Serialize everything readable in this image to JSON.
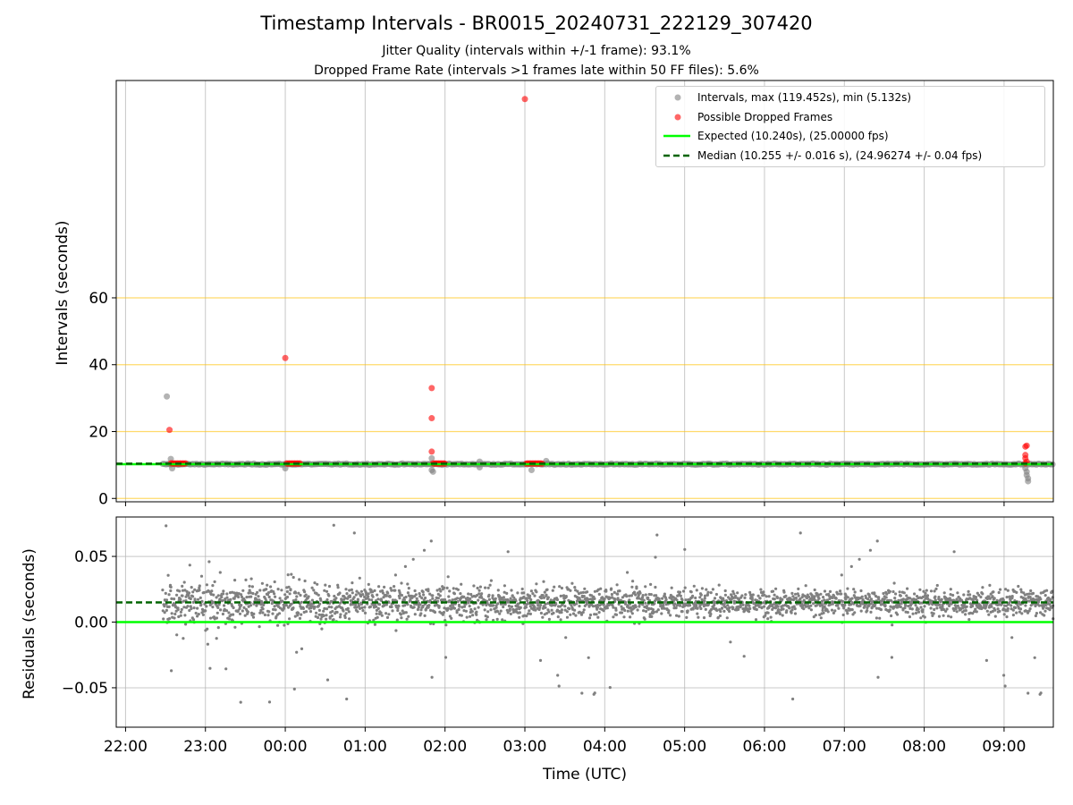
{
  "title": "Timestamp Intervals - BR0015_20240731_222129_307420",
  "subtitle_lines": [
    "Jitter Quality (intervals within +/-1 frame): 93.1%",
    "Dropped Frame Rate (intervals >1 frames late within 50 FF files): 5.6%"
  ],
  "colors": {
    "intervals": "#808080",
    "dropped": "#ff0000",
    "expected": "#00ff00",
    "median": "#006400",
    "hline": "#ffc107",
    "grid": "#b0b0b0"
  },
  "chart_data": [
    {
      "type": "scatter",
      "ylabel": "Intervals (seconds)",
      "ylim": [
        -1,
        125
      ],
      "xlim": [
        "21:53",
        "09:37"
      ],
      "yticks": [
        "0",
        "20",
        "40",
        "60"
      ],
      "ytick_values": [
        0,
        20,
        40,
        60
      ],
      "horizontal_lines": [
        0,
        20,
        40,
        60
      ],
      "grid": "vertical",
      "legend": {
        "placement": "top-right",
        "entries": [
          "Intervals, max (119.452s), min (5.132s)",
          "Possible Dropped Frames",
          "Expected (10.240s), (25.00000 fps)",
          "Median (10.255 +/- 0.016 s), (24.96274 +/- 0.04 fps)"
        ]
      },
      "expected": 10.24,
      "median": 10.255,
      "intervals": {
        "range": [
          "22:28",
          "09:37"
        ],
        "baseline": 10.24,
        "outliers": [
          {
            "t": "22:31",
            "y": 30.5
          },
          {
            "t": "22:34",
            "y": 11.8
          },
          {
            "t": "22:35",
            "y": 9.0
          },
          {
            "t": "00:00",
            "y": 9.0
          },
          {
            "t": "01:50",
            "y": 12.0
          },
          {
            "t": "01:50",
            "y": 8.5
          },
          {
            "t": "01:51",
            "y": 8.0
          },
          {
            "t": "02:26",
            "y": 11.0
          },
          {
            "t": "02:26",
            "y": 9.3
          },
          {
            "t": "03:05",
            "y": 8.5
          },
          {
            "t": "03:16",
            "y": 11.2
          },
          {
            "t": "09:16",
            "y": 9.0
          },
          {
            "t": "09:17",
            "y": 8.0
          },
          {
            "t": "09:17",
            "y": 7.0
          },
          {
            "t": "09:18",
            "y": 6.0
          },
          {
            "t": "09:18",
            "y": 5.132
          }
        ]
      },
      "dropped_frames": [
        {
          "t": "22:33",
          "y": 20.5
        },
        {
          "t": "22:34",
          "y": 10.5
        },
        {
          "t": "22:35",
          "y": 10.5
        },
        {
          "t": "22:36",
          "y": 10.4
        },
        {
          "t": "22:37",
          "y": 10.5
        },
        {
          "t": "22:38",
          "y": 10.4
        },
        {
          "t": "22:39",
          "y": 10.5
        },
        {
          "t": "22:40",
          "y": 10.4
        },
        {
          "t": "22:41",
          "y": 10.5
        },
        {
          "t": "22:42",
          "y": 10.4
        },
        {
          "t": "22:43",
          "y": 10.5
        },
        {
          "t": "22:44",
          "y": 10.4
        },
        {
          "t": "22:45",
          "y": 10.5
        },
        {
          "t": "00:00",
          "y": 42.0
        },
        {
          "t": "00:01",
          "y": 10.5
        },
        {
          "t": "00:02",
          "y": 10.4
        },
        {
          "t": "00:03",
          "y": 10.5
        },
        {
          "t": "00:04",
          "y": 10.4
        },
        {
          "t": "00:05",
          "y": 10.5
        },
        {
          "t": "00:06",
          "y": 10.4
        },
        {
          "t": "00:07",
          "y": 10.5
        },
        {
          "t": "00:08",
          "y": 10.4
        },
        {
          "t": "00:09",
          "y": 10.5
        },
        {
          "t": "00:10",
          "y": 10.4
        },
        {
          "t": "00:11",
          "y": 10.5
        },
        {
          "t": "01:50",
          "y": 33.0
        },
        {
          "t": "01:50",
          "y": 24.0
        },
        {
          "t": "01:50",
          "y": 14.0
        },
        {
          "t": "01:51",
          "y": 10.5
        },
        {
          "t": "01:52",
          "y": 10.4
        },
        {
          "t": "01:53",
          "y": 10.5
        },
        {
          "t": "01:54",
          "y": 10.4
        },
        {
          "t": "01:55",
          "y": 10.5
        },
        {
          "t": "01:56",
          "y": 10.4
        },
        {
          "t": "01:57",
          "y": 10.5
        },
        {
          "t": "01:58",
          "y": 10.4
        },
        {
          "t": "01:59",
          "y": 10.5
        },
        {
          "t": "02:00",
          "y": 10.4
        },
        {
          "t": "03:00",
          "y": 119.452
        },
        {
          "t": "03:01",
          "y": 10.4
        },
        {
          "t": "03:02",
          "y": 10.5
        },
        {
          "t": "03:03",
          "y": 10.4
        },
        {
          "t": "03:04",
          "y": 10.5
        },
        {
          "t": "03:05",
          "y": 10.4
        },
        {
          "t": "03:06",
          "y": 10.5
        },
        {
          "t": "03:07",
          "y": 10.4
        },
        {
          "t": "03:08",
          "y": 10.5
        },
        {
          "t": "03:09",
          "y": 10.4
        },
        {
          "t": "03:10",
          "y": 10.5
        },
        {
          "t": "03:11",
          "y": 10.4
        },
        {
          "t": "03:12",
          "y": 10.5
        },
        {
          "t": "03:13",
          "y": 10.4
        },
        {
          "t": "09:16",
          "y": 15.5
        },
        {
          "t": "09:17",
          "y": 15.8
        },
        {
          "t": "09:16",
          "y": 13.0
        },
        {
          "t": "09:16",
          "y": 12.0
        },
        {
          "t": "09:17",
          "y": 11.0
        },
        {
          "t": "09:16",
          "y": 10.5
        }
      ]
    },
    {
      "type": "scatter",
      "xlabel": "Time (UTC)",
      "ylabel": "Residuals (seconds)",
      "ylim": [
        -0.08,
        0.08
      ],
      "xlim": [
        "21:53",
        "09:37"
      ],
      "xticks": [
        "22:00",
        "23:00",
        "00:00",
        "01:00",
        "02:00",
        "03:00",
        "04:00",
        "05:00",
        "06:00",
        "07:00",
        "08:00",
        "09:00"
      ],
      "yticks": [
        "−0.05",
        "0.00",
        "0.05"
      ],
      "ytick_values": [
        -0.05,
        0,
        0.05
      ],
      "grid": "both",
      "expected": 0.0,
      "median": 0.015,
      "residuals": {
        "range": [
          "22:28",
          "09:37"
        ],
        "center": 0.015,
        "spread_early": 0.022,
        "spread_late": 0.013,
        "points_shown": 2600
      }
    }
  ]
}
